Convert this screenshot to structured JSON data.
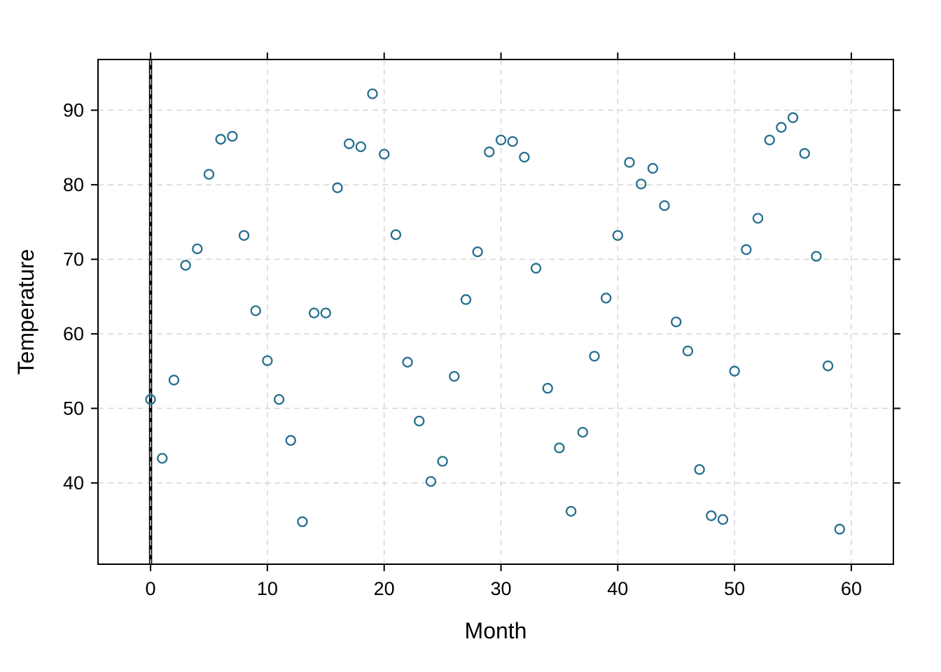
{
  "figure": {
    "background": "#ffffff"
  },
  "chart_data": {
    "type": "scatter",
    "title": "",
    "xlabel": "Month",
    "ylabel": "Temperature",
    "marker": "open-circle",
    "point_color": "#266f8f",
    "grid": true,
    "grid_style": "dashed",
    "grid_color": "#d9d9d9",
    "border_color": "#000000",
    "reference_line_x": 0,
    "x_ticks": [
      0,
      10,
      20,
      30,
      40,
      50,
      60
    ],
    "y_ticks": [
      40,
      50,
      60,
      70,
      80,
      90
    ],
    "xlim": [
      -4.5,
      63.6
    ],
    "ylim": [
      29.1,
      96.8
    ],
    "x": [
      0,
      1,
      2,
      3,
      4,
      5,
      6,
      7,
      8,
      9,
      10,
      11,
      12,
      13,
      14,
      15,
      16,
      17,
      18,
      19,
      20,
      21,
      22,
      23,
      24,
      25,
      26,
      27,
      28,
      29,
      30,
      31,
      32,
      33,
      34,
      35,
      36,
      37,
      38,
      39,
      40,
      41,
      42,
      43,
      44,
      45,
      46,
      47,
      48,
      49,
      50,
      51,
      52,
      53,
      54,
      55,
      56,
      57,
      58,
      59
    ],
    "y": [
      51.2,
      43.3,
      53.8,
      69.2,
      71.4,
      81.4,
      86.1,
      86.5,
      73.2,
      63.1,
      56.4,
      51.2,
      45.7,
      34.8,
      62.8,
      62.8,
      79.6,
      85.5,
      85.1,
      92.2,
      84.1,
      73.3,
      56.2,
      48.3,
      40.2,
      42.9,
      54.3,
      64.6,
      71.0,
      84.4,
      86.0,
      85.8,
      83.7,
      68.8,
      52.7,
      44.7,
      36.2,
      46.8,
      57.0,
      64.8,
      73.2,
      83.0,
      80.1,
      82.2,
      77.2,
      61.6,
      57.7,
      41.8,
      35.6,
      35.1,
      55.0,
      71.3,
      75.5,
      86.0,
      87.7,
      89.0,
      84.2,
      70.4,
      55.7,
      33.8
    ]
  }
}
